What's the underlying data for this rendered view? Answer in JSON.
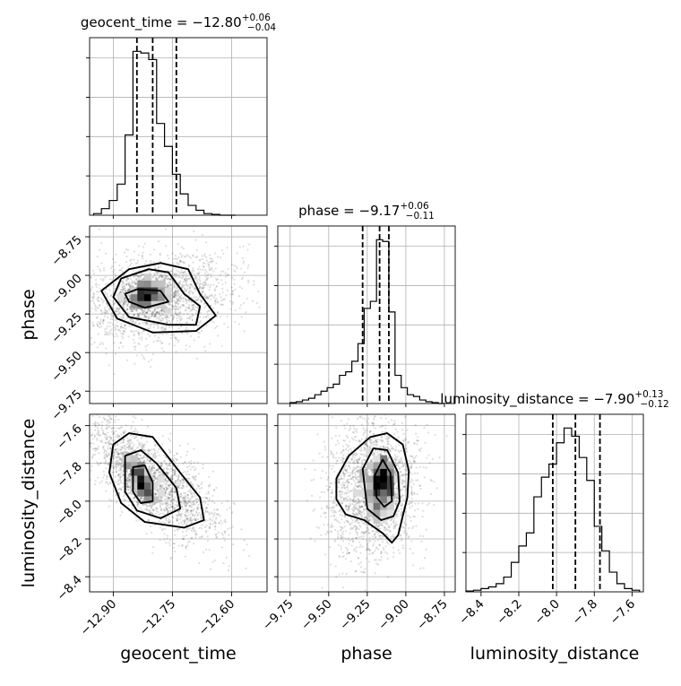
{
  "chart_data": {
    "type": "corner",
    "grid": true,
    "params": [
      {
        "name": "geocent_time",
        "axis_label": "geocent_time",
        "title_prefix": "geocent_time = −12.80",
        "title_plus": "+0.06",
        "title_minus": "−0.04",
        "range": [
          -12.96,
          -12.51
        ],
        "ticks": [
          -12.9,
          -12.75,
          -12.6
        ],
        "tick_labels": [
          "−12.90",
          "−12.75",
          "−12.60"
        ],
        "quantiles": [
          -12.84,
          -12.8,
          -12.74
        ],
        "hist": {
          "edges": [
            -12.95,
            -12.93,
            -12.91,
            -12.89,
            -12.87,
            -12.85,
            -12.83,
            -12.81,
            -12.79,
            -12.77,
            -12.75,
            -12.73,
            -12.71,
            -12.69,
            -12.67,
            -12.65,
            -12.63,
            -12.61,
            -12.59
          ],
          "counts": [
            0.01,
            0.04,
            0.09,
            0.19,
            0.49,
            1.0,
            0.99,
            0.95,
            0.56,
            0.42,
            0.25,
            0.13,
            0.06,
            0.03,
            0.01,
            0.005,
            0,
            0
          ]
        }
      },
      {
        "name": "phase",
        "axis_label": "phase",
        "title_prefix": "phase = −9.17",
        "title_plus": "+0.06",
        "title_minus": "−0.11",
        "range": [
          -9.83,
          -8.68
        ],
        "ticks": [
          -9.75,
          -9.5,
          -9.25,
          -9.0,
          -8.75
        ],
        "tick_labels": [
          "−9.75",
          "−9.50",
          "−9.25",
          "−9.00",
          "−8.75"
        ],
        "quantiles": [
          -9.28,
          -9.17,
          -9.11
        ],
        "hist": {
          "edges": [
            -9.75,
            -9.71,
            -9.67,
            -9.63,
            -9.59,
            -9.55,
            -9.51,
            -9.47,
            -9.43,
            -9.39,
            -9.35,
            -9.31,
            -9.27,
            -9.23,
            -9.19,
            -9.15,
            -9.11,
            -9.07,
            -9.03,
            -8.99,
            -8.95,
            -8.91,
            -8.87,
            -8.83,
            -8.79,
            -8.75
          ],
          "counts": [
            0.005,
            0.01,
            0.02,
            0.03,
            0.05,
            0.07,
            0.09,
            0.11,
            0.16,
            0.18,
            0.24,
            0.34,
            0.54,
            0.58,
            0.93,
            0.92,
            0.52,
            0.16,
            0.09,
            0.05,
            0.04,
            0.02,
            0.01,
            0.005,
            0
          ]
        }
      },
      {
        "name": "luminosity_distance",
        "axis_label": "luminosity_distance",
        "title_prefix": "luminosity_distance = −7.90",
        "title_plus": "+0.13",
        "title_minus": "−0.12",
        "range": [
          -8.48,
          -7.54
        ],
        "ticks": [
          -8.4,
          -8.2,
          -8.0,
          -7.8,
          -7.6
        ],
        "tick_labels": [
          "−8.4",
          "−8.2",
          "−8.0",
          "−7.8",
          "−7.6"
        ],
        "quantiles": [
          -8.02,
          -7.9,
          -7.77
        ],
        "hist": {
          "edges": [
            -8.48,
            -8.44,
            -8.4,
            -8.36,
            -8.32,
            -8.28,
            -8.24,
            -8.2,
            -8.16,
            -8.12,
            -8.08,
            -8.04,
            -8.0,
            -7.96,
            -7.92,
            -7.88,
            -7.84,
            -7.8,
            -7.76,
            -7.72,
            -7.68,
            -7.64,
            -7.6,
            -7.56
          ],
          "counts": [
            0.005,
            0.01,
            0.02,
            0.03,
            0.05,
            0.09,
            0.18,
            0.28,
            0.36,
            0.58,
            0.7,
            0.78,
            0.91,
            1.0,
            0.95,
            0.82,
            0.68,
            0.4,
            0.25,
            0.12,
            0.05,
            0.02,
            0.01
          ]
        }
      }
    ],
    "pairs": [
      {
        "x": "geocent_time",
        "y": "phase",
        "peak": [
          -12.82,
          -9.13
        ],
        "core_sd": [
          0.03,
          0.05
        ],
        "rho": 0.2,
        "contours": [
          [
            [
              -12.86,
              -9.17
            ],
            [
              -12.82,
              -9.21
            ],
            [
              -12.76,
              -9.17
            ],
            [
              -12.78,
              -9.1
            ],
            [
              -12.84,
              -9.09
            ],
            [
              -12.87,
              -9.12
            ],
            [
              -12.86,
              -9.17
            ]
          ],
          [
            [
              -12.9,
              -9.14
            ],
            [
              -12.86,
              -9.27
            ],
            [
              -12.76,
              -9.32
            ],
            [
              -12.69,
              -9.32
            ],
            [
              -12.68,
              -9.2
            ],
            [
              -12.72,
              -9.12
            ],
            [
              -12.76,
              -8.98
            ],
            [
              -12.81,
              -8.96
            ],
            [
              -12.88,
              -9.02
            ],
            [
              -12.9,
              -9.14
            ]
          ],
          [
            [
              -12.93,
              -9.1
            ],
            [
              -12.89,
              -9.28
            ],
            [
              -12.8,
              -9.37
            ],
            [
              -12.69,
              -9.36
            ],
            [
              -12.64,
              -9.26
            ],
            [
              -12.68,
              -9.12
            ],
            [
              -12.71,
              -8.96
            ],
            [
              -12.78,
              -8.92
            ],
            [
              -12.86,
              -8.96
            ],
            [
              -12.93,
              -9.1
            ]
          ]
        ]
      },
      {
        "x": "geocent_time",
        "y": "luminosity_distance",
        "peak": [
          -12.83,
          -7.9
        ],
        "core_sd": [
          0.02,
          0.07
        ],
        "rho": -0.7,
        "contours": [
          [
            [
              -12.85,
              -7.82
            ],
            [
              -12.82,
              -7.81
            ],
            [
              -12.8,
              -7.9
            ],
            [
              -12.8,
              -8.0
            ],
            [
              -12.83,
              -8.01
            ],
            [
              -12.85,
              -7.95
            ],
            [
              -12.85,
              -7.82
            ]
          ],
          [
            [
              -12.87,
              -7.76
            ],
            [
              -12.83,
              -7.73
            ],
            [
              -12.79,
              -7.8
            ],
            [
              -12.74,
              -7.93
            ],
            [
              -12.73,
              -8.04
            ],
            [
              -12.78,
              -8.09
            ],
            [
              -12.84,
              -8.05
            ],
            [
              -12.87,
              -7.95
            ],
            [
              -12.87,
              -7.76
            ]
          ],
          [
            [
              -12.9,
              -7.7
            ],
            [
              -12.86,
              -7.64
            ],
            [
              -12.8,
              -7.66
            ],
            [
              -12.73,
              -7.85
            ],
            [
              -12.68,
              -7.98
            ],
            [
              -12.67,
              -8.1
            ],
            [
              -12.72,
              -8.14
            ],
            [
              -12.82,
              -8.11
            ],
            [
              -12.88,
              -8.01
            ],
            [
              -12.91,
              -7.85
            ],
            [
              -12.9,
              -7.7
            ]
          ]
        ]
      },
      {
        "x": "phase",
        "y": "luminosity_distance",
        "peak": [
          -9.15,
          -7.91
        ],
        "core_sd": [
          0.05,
          0.09
        ],
        "rho": 0.1,
        "contours": [
          [
            [
              -9.2,
              -7.86
            ],
            [
              -9.15,
              -7.78
            ],
            [
              -9.1,
              -7.85
            ],
            [
              -9.09,
              -8.0
            ],
            [
              -9.14,
              -8.03
            ],
            [
              -9.19,
              -7.98
            ],
            [
              -9.2,
              -7.86
            ]
          ],
          [
            [
              -9.28,
              -7.83
            ],
            [
              -9.21,
              -7.72
            ],
            [
              -9.12,
              -7.73
            ],
            [
              -9.05,
              -7.85
            ],
            [
              -9.04,
              -8.0
            ],
            [
              -9.08,
              -8.08
            ],
            [
              -9.16,
              -8.1
            ],
            [
              -9.25,
              -8.04
            ],
            [
              -9.28,
              -7.83
            ]
          ],
          [
            [
              -9.45,
              -7.88
            ],
            [
              -9.37,
              -7.76
            ],
            [
              -9.23,
              -7.66
            ],
            [
              -9.12,
              -7.64
            ],
            [
              -9.02,
              -7.7
            ],
            [
              -8.98,
              -7.84
            ],
            [
              -8.99,
              -7.98
            ],
            [
              -9.05,
              -8.18
            ],
            [
              -9.09,
              -8.22
            ],
            [
              -9.15,
              -8.17
            ],
            [
              -9.27,
              -8.1
            ],
            [
              -9.39,
              -8.07
            ],
            [
              -9.45,
              -7.99
            ],
            [
              -9.45,
              -7.88
            ]
          ]
        ]
      }
    ]
  }
}
